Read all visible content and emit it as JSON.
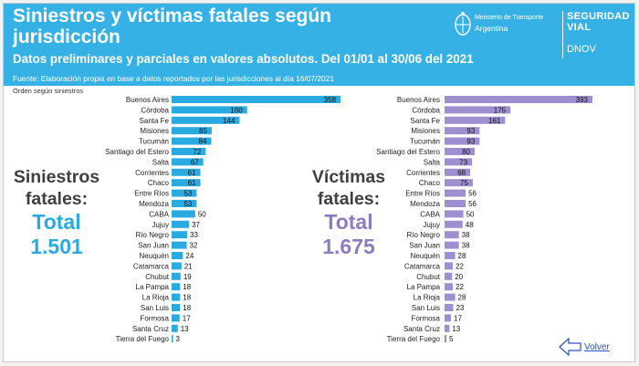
{
  "header": {
    "title": "Siniestros y víctimas fatales según jurisdicción",
    "subtitle": "Datos preliminares y parciales en valores absolutos. Del 01/01 al 30/06 del 2021",
    "source": "Fuente: Elaboración propia en base a datos reportados por las jurisdicciones al día 16/07/2021",
    "ministry": "Ministerio de Transporte",
    "country": "Argentina",
    "agency": "SEGURIDAD\nVIAL",
    "division": "DNOV"
  },
  "order_note": "Orden según siniestros",
  "left_panel": {
    "line1": "Siniestros",
    "line2": "fatales:",
    "total_label": "Total",
    "total_value": "1.501"
  },
  "right_panel": {
    "line1": "Víctimas",
    "line2": "fatales:",
    "total_label": "Total",
    "total_value": "1.675"
  },
  "back_link": "Volver",
  "colors": {
    "header": "#36b1e6",
    "siniestros": "#29abe2",
    "victimas": "#9e8fd1",
    "total_blue": "#29abe2",
    "total_purple": "#8e7cc3"
  },
  "chart_data": [
    {
      "type": "bar",
      "orientation": "horizontal",
      "series": [
        {
          "name": "Siniestros fatales",
          "values": [
            358,
            160,
            144,
            85,
            84,
            72,
            67,
            61,
            61,
            53,
            53,
            50,
            37,
            33,
            32,
            24,
            21,
            19,
            18,
            18,
            18,
            17,
            13,
            3
          ]
        }
      ],
      "categories": [
        "Buenos Aires",
        "Córdoba",
        "Santa Fe",
        "Misiones",
        "Tucumán",
        "Santiago del Estero",
        "Salta",
        "Corrientes",
        "Chaco",
        "Entre Ríos",
        "Mendoza",
        "CABA",
        "Jujuy",
        "Río Negro",
        "San Juan",
        "Neuquén",
        "Catamarca",
        "Chubut",
        "La Pampa",
        "La Rioja",
        "San Luis",
        "Formosa",
        "Santa Cruz",
        "Tierra del Fuego"
      ]
    },
    {
      "type": "bar",
      "orientation": "horizontal",
      "series": [
        {
          "name": "Víctimas fatales",
          "values": [
            393,
            175,
            161,
            93,
            93,
            80,
            73,
            68,
            75,
            56,
            56,
            50,
            48,
            38,
            38,
            28,
            22,
            20,
            22,
            28,
            23,
            17,
            13,
            5
          ]
        }
      ],
      "categories": [
        "Buenos Aires",
        "Córdoba",
        "Santa Fe",
        "Misiones",
        "Tucumán",
        "Santiago del Estero",
        "Salta",
        "Corrientes",
        "Chaco",
        "Entre Ríos",
        "Mendoza",
        "CABA",
        "Jujuy",
        "Río Negro",
        "San Juan",
        "Neuquén",
        "Catamarca",
        "Chubut",
        "La Pampa",
        "La Rioja",
        "San Luis",
        "Formosa",
        "Santa Cruz",
        "Tierra del Fuego"
      ]
    }
  ]
}
